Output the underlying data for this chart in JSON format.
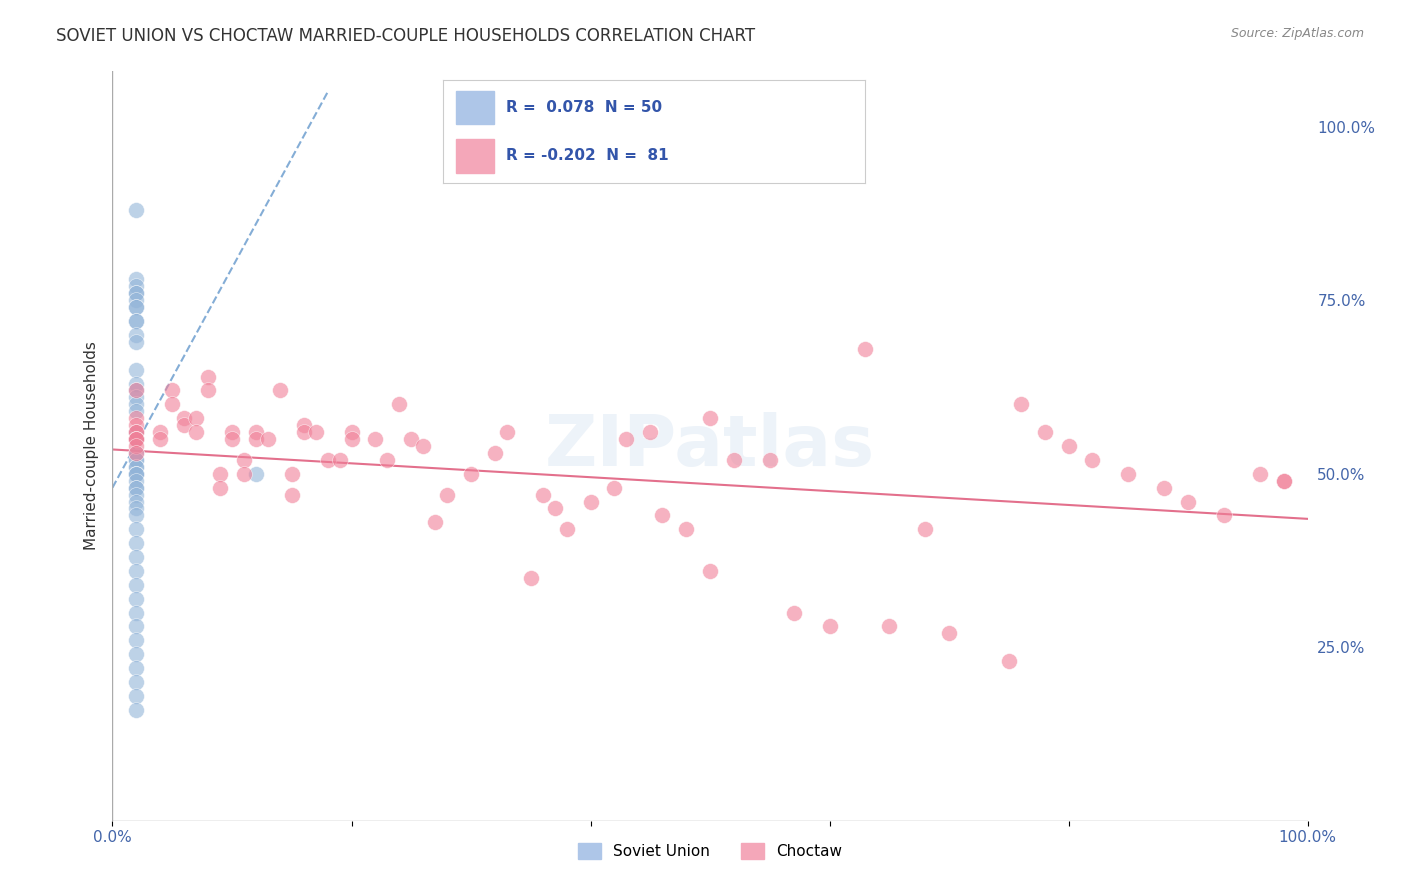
{
  "title": "SOVIET UNION VS CHOCTAW MARRIED-COUPLE HOUSEHOLDS CORRELATION CHART",
  "source": "Source: ZipAtlas.com",
  "ylabel": "Married-couple Households",
  "ytick_labels": [
    "25.0%",
    "50.0%",
    "75.0%",
    "100.0%"
  ],
  "ytick_values": [
    0.25,
    0.5,
    0.75,
    1.0
  ],
  "xlim": [
    0.0,
    1.0
  ],
  "ylim": [
    0.0,
    1.08
  ],
  "soviet_R": 0.078,
  "soviet_N": 50,
  "choctaw_R": -0.202,
  "choctaw_N": 81,
  "soviet_color": "#92b4d8",
  "choctaw_color": "#f08098",
  "soviet_trendline_color": "#6699cc",
  "choctaw_trendline_color": "#e06080",
  "legend_blue_color": "#aec6e8",
  "legend_pink_color": "#f4a7b9",
  "background_color": "#ffffff",
  "grid_color": "#cccccc",
  "title_color": "#333333",
  "axis_label_color": "#4466aa",
  "watermark": "ZIPatlas",
  "soviet_scatter": {
    "x": [
      0.02,
      0.02,
      0.02,
      0.02,
      0.02,
      0.02,
      0.02,
      0.02,
      0.02,
      0.02,
      0.02,
      0.02,
      0.02,
      0.02,
      0.02,
      0.02,
      0.02,
      0.02,
      0.02,
      0.02,
      0.02,
      0.02,
      0.02,
      0.02,
      0.02,
      0.02,
      0.02,
      0.02,
      0.02,
      0.02,
      0.02,
      0.02,
      0.02,
      0.02,
      0.02,
      0.02,
      0.02,
      0.02,
      0.02,
      0.02,
      0.02,
      0.02,
      0.02,
      0.02,
      0.02,
      0.02,
      0.02,
      0.02,
      0.12,
      0.02
    ],
    "y": [
      0.88,
      0.78,
      0.77,
      0.76,
      0.76,
      0.75,
      0.74,
      0.74,
      0.72,
      0.72,
      0.7,
      0.69,
      0.65,
      0.63,
      0.62,
      0.61,
      0.6,
      0.59,
      0.56,
      0.55,
      0.53,
      0.52,
      0.52,
      0.51,
      0.51,
      0.5,
      0.5,
      0.5,
      0.49,
      0.48,
      0.48,
      0.47,
      0.46,
      0.45,
      0.44,
      0.42,
      0.4,
      0.38,
      0.36,
      0.34,
      0.32,
      0.3,
      0.28,
      0.26,
      0.24,
      0.22,
      0.2,
      0.18,
      0.5,
      0.16
    ]
  },
  "choctaw_scatter": {
    "x": [
      0.02,
      0.02,
      0.02,
      0.02,
      0.02,
      0.02,
      0.02,
      0.02,
      0.02,
      0.02,
      0.04,
      0.04,
      0.05,
      0.05,
      0.06,
      0.06,
      0.07,
      0.07,
      0.08,
      0.08,
      0.09,
      0.09,
      0.1,
      0.1,
      0.11,
      0.11,
      0.12,
      0.12,
      0.13,
      0.14,
      0.15,
      0.15,
      0.16,
      0.16,
      0.17,
      0.18,
      0.19,
      0.2,
      0.2,
      0.22,
      0.23,
      0.24,
      0.25,
      0.26,
      0.27,
      0.28,
      0.3,
      0.32,
      0.33,
      0.35,
      0.36,
      0.37,
      0.38,
      0.4,
      0.42,
      0.43,
      0.45,
      0.46,
      0.48,
      0.5,
      0.5,
      0.52,
      0.55,
      0.57,
      0.6,
      0.63,
      0.65,
      0.68,
      0.7,
      0.75,
      0.76,
      0.78,
      0.8,
      0.82,
      0.85,
      0.88,
      0.9,
      0.93,
      0.96,
      0.98,
      0.98
    ],
    "y": [
      0.62,
      0.58,
      0.57,
      0.56,
      0.56,
      0.55,
      0.55,
      0.55,
      0.54,
      0.53,
      0.56,
      0.55,
      0.62,
      0.6,
      0.58,
      0.57,
      0.58,
      0.56,
      0.64,
      0.62,
      0.5,
      0.48,
      0.56,
      0.55,
      0.52,
      0.5,
      0.56,
      0.55,
      0.55,
      0.62,
      0.5,
      0.47,
      0.57,
      0.56,
      0.56,
      0.52,
      0.52,
      0.56,
      0.55,
      0.55,
      0.52,
      0.6,
      0.55,
      0.54,
      0.43,
      0.47,
      0.5,
      0.53,
      0.56,
      0.35,
      0.47,
      0.45,
      0.42,
      0.46,
      0.48,
      0.55,
      0.56,
      0.44,
      0.42,
      0.58,
      0.36,
      0.52,
      0.52,
      0.3,
      0.28,
      0.68,
      0.28,
      0.42,
      0.27,
      0.23,
      0.6,
      0.56,
      0.54,
      0.52,
      0.5,
      0.48,
      0.46,
      0.44,
      0.5,
      0.49,
      0.49
    ]
  }
}
